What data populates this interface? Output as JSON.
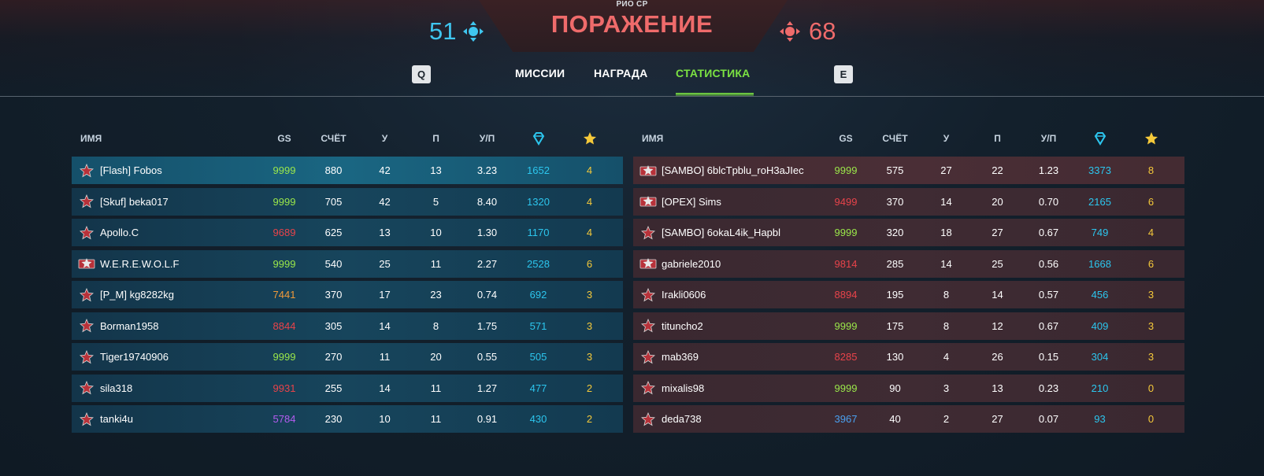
{
  "header": {
    "mode": "РИО CP",
    "result": "ПОРАЖЕНИЕ",
    "score_blue": "51",
    "score_red": "68",
    "key_prev": "Q",
    "key_next": "E",
    "tabs": [
      "МИССИИ",
      "НАГРАДА",
      "СТАТИСТИКА"
    ],
    "active_tab": "СТАТИСТИКА"
  },
  "columns": {
    "name": "ИМЯ",
    "gs": "GS",
    "score": "СЧЁТ",
    "kills": "У",
    "deaths": "П",
    "kd": "У/П",
    "crystals_icon": "crystal-icon",
    "stars_icon": "star-icon"
  },
  "colors": {
    "gs_green": "#9be84a",
    "gs_red": "#e8434a",
    "gs_orange": "#f09a3a",
    "gs_purple": "#b45cf0",
    "gs_blue": "#4aa0f0",
    "crystals": "#2cc6ee",
    "stars": "#f5c93a",
    "accent_green": "#7be242"
  },
  "team_blue": [
    {
      "rank": "rank-star-icon",
      "name": "[Flash] Fobos",
      "gs": "9999",
      "gs_color": "#9be84a",
      "score": "880",
      "kills": "42",
      "deaths": "13",
      "kd": "3.23",
      "crystals": "1652",
      "stars": "4"
    },
    {
      "rank": "rank-star-icon",
      "name": "[Skuf] beka017",
      "gs": "9999",
      "gs_color": "#9be84a",
      "score": "705",
      "kills": "42",
      "deaths": "5",
      "kd": "8.40",
      "crystals": "1320",
      "stars": "4"
    },
    {
      "rank": "rank-star-icon",
      "name": "Apollo.C",
      "gs": "9689",
      "gs_color": "#e8434a",
      "score": "625",
      "kills": "13",
      "deaths": "10",
      "kd": "1.30",
      "crystals": "1170",
      "stars": "4"
    },
    {
      "rank": "rank-emblem-icon",
      "name": "W.E.R.E.W.O.L.F",
      "gs": "9999",
      "gs_color": "#9be84a",
      "score": "540",
      "kills": "25",
      "deaths": "11",
      "kd": "2.27",
      "crystals": "2528",
      "stars": "6"
    },
    {
      "rank": "rank-star-icon",
      "name": "[P_M] kg8282kg",
      "gs": "7441",
      "gs_color": "#f09a3a",
      "score": "370",
      "kills": "17",
      "deaths": "23",
      "kd": "0.74",
      "crystals": "692",
      "stars": "3"
    },
    {
      "rank": "rank-star-icon",
      "name": "Borman1958",
      "gs": "8844",
      "gs_color": "#e8434a",
      "score": "305",
      "kills": "14",
      "deaths": "8",
      "kd": "1.75",
      "crystals": "571",
      "stars": "3"
    },
    {
      "rank": "rank-star-icon",
      "name": "Tiger19740906",
      "gs": "9999",
      "gs_color": "#9be84a",
      "score": "270",
      "kills": "11",
      "deaths": "20",
      "kd": "0.55",
      "crystals": "505",
      "stars": "3"
    },
    {
      "rank": "rank-star-icon",
      "name": "sila318",
      "gs": "9931",
      "gs_color": "#e8434a",
      "score": "255",
      "kills": "14",
      "deaths": "11",
      "kd": "1.27",
      "crystals": "477",
      "stars": "2"
    },
    {
      "rank": "rank-star-icon",
      "name": "tanki4u",
      "gs": "5784",
      "gs_color": "#b45cf0",
      "score": "230",
      "kills": "10",
      "deaths": "11",
      "kd": "0.91",
      "crystals": "430",
      "stars": "2"
    }
  ],
  "team_red": [
    {
      "rank": "rank-emblem-icon",
      "name": "[SAMBO] 6blcTpblu_roH3aJIec",
      "gs": "9999",
      "gs_color": "#9be84a",
      "score": "575",
      "kills": "27",
      "deaths": "22",
      "kd": "1.23",
      "crystals": "3373",
      "stars": "8"
    },
    {
      "rank": "rank-emblem-icon",
      "name": "[OPEX] Sims",
      "gs": "9499",
      "gs_color": "#e8434a",
      "score": "370",
      "kills": "14",
      "deaths": "20",
      "kd": "0.70",
      "crystals": "2165",
      "stars": "6"
    },
    {
      "rank": "rank-star-icon",
      "name": "[SAMBO] 6okaL4ik_Hapbl",
      "gs": "9999",
      "gs_color": "#9be84a",
      "score": "320",
      "kills": "18",
      "deaths": "27",
      "kd": "0.67",
      "crystals": "749",
      "stars": "4"
    },
    {
      "rank": "rank-emblem-icon",
      "name": "gabriele2010",
      "gs": "9814",
      "gs_color": "#e8434a",
      "score": "285",
      "kills": "14",
      "deaths": "25",
      "kd": "0.56",
      "crystals": "1668",
      "stars": "6"
    },
    {
      "rank": "rank-star-icon",
      "name": "Irakli0606",
      "gs": "8894",
      "gs_color": "#e8434a",
      "score": "195",
      "kills": "8",
      "deaths": "14",
      "kd": "0.57",
      "crystals": "456",
      "stars": "3"
    },
    {
      "rank": "rank-star-icon",
      "name": "tituncho2",
      "gs": "9999",
      "gs_color": "#9be84a",
      "score": "175",
      "kills": "8",
      "deaths": "12",
      "kd": "0.67",
      "crystals": "409",
      "stars": "3"
    },
    {
      "rank": "rank-star-icon",
      "name": "mab369",
      "gs": "8285",
      "gs_color": "#e8434a",
      "score": "130",
      "kills": "4",
      "deaths": "26",
      "kd": "0.15",
      "crystals": "304",
      "stars": "3"
    },
    {
      "rank": "rank-star-icon",
      "name": "mixalis98",
      "gs": "9999",
      "gs_color": "#9be84a",
      "score": "90",
      "kills": "3",
      "deaths": "13",
      "kd": "0.23",
      "crystals": "210",
      "stars": "0"
    },
    {
      "rank": "rank-star-icon",
      "name": "deda738",
      "gs": "3967",
      "gs_color": "#4aa0f0",
      "score": "40",
      "kills": "2",
      "deaths": "27",
      "kd": "0.07",
      "crystals": "93",
      "stars": "0"
    }
  ]
}
